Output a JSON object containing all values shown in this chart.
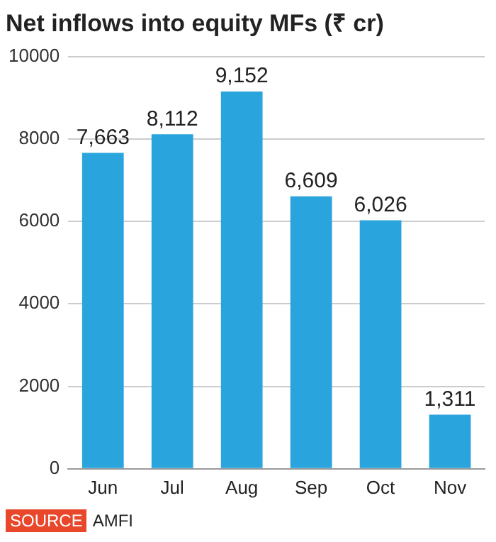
{
  "chart_data": {
    "type": "bar",
    "title": "Net inflows into equity MFs (₹ cr)",
    "categories": [
      "Jun",
      "Jul",
      "Aug",
      "Sep",
      "Oct",
      "Nov"
    ],
    "values": [
      7663,
      8112,
      9152,
      6609,
      6026,
      1311
    ],
    "color": "#2aa4dc",
    "ylim": [
      0,
      10000
    ],
    "yticks": [
      0,
      2000,
      4000,
      6000,
      8000,
      10000
    ],
    "value_labels": [
      "7,663",
      "8,112",
      "9,152",
      "6,609",
      "6,026",
      "1,311"
    ],
    "grid": "y",
    "legend": false,
    "annotations": [
      "SOURCE",
      "AMFI"
    ]
  }
}
